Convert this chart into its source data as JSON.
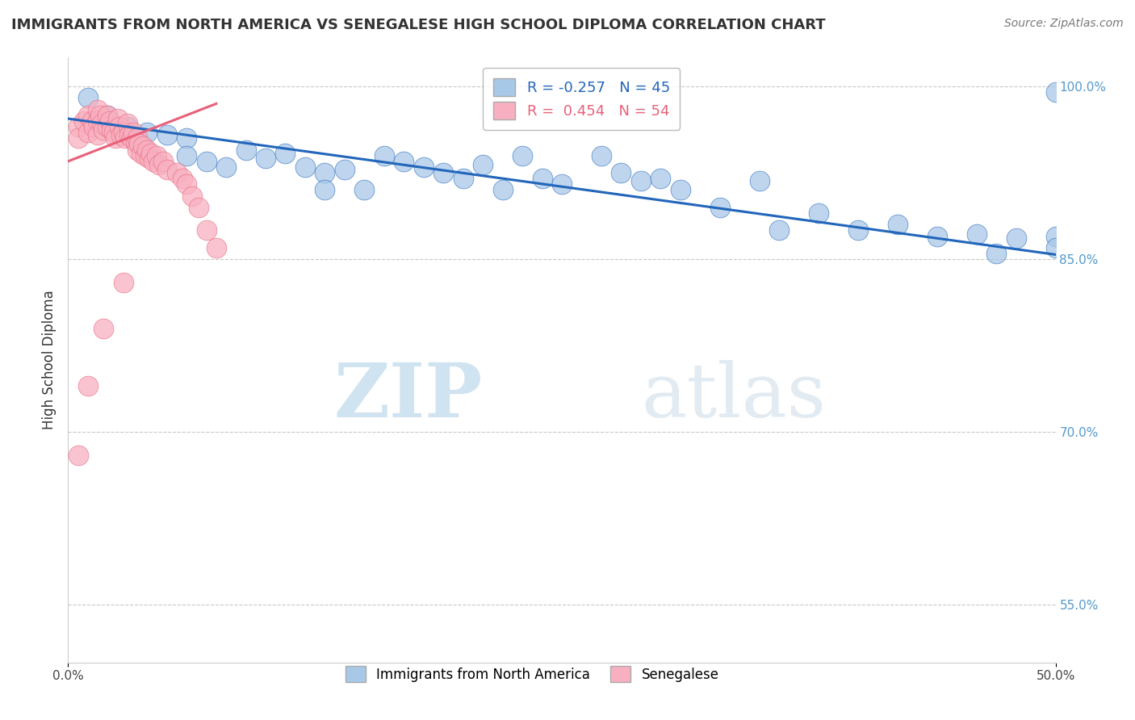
{
  "title": "IMMIGRANTS FROM NORTH AMERICA VS SENEGALESE HIGH SCHOOL DIPLOMA CORRELATION CHART",
  "source": "Source: ZipAtlas.com",
  "ylabel": "High School Diploma",
  "xlim": [
    0.0,
    0.5
  ],
  "ylim": [
    0.5,
    1.025
  ],
  "ytick_right_labels": [
    "100.0%",
    "85.0%",
    "70.0%",
    "55.0%"
  ],
  "ytick_right_vals": [
    1.0,
    0.85,
    0.7,
    0.55
  ],
  "grid_color": "#c8c8c8",
  "background_color": "#ffffff",
  "blue_color": "#a8c8e8",
  "blue_line_color": "#2266bb",
  "pink_color": "#f8b0c0",
  "pink_line_color": "#e8607a",
  "R_blue": -0.257,
  "N_blue": 45,
  "R_pink": 0.454,
  "N_pink": 54,
  "legend_label_blue": "Immigrants from North America",
  "legend_label_pink": "Senegalese",
  "watermark_zip": "ZIP",
  "watermark_atlas": "atlas",
  "blue_scatter_x": [
    0.01,
    0.02,
    0.03,
    0.04,
    0.05,
    0.06,
    0.06,
    0.07,
    0.08,
    0.09,
    0.1,
    0.11,
    0.12,
    0.13,
    0.13,
    0.14,
    0.15,
    0.16,
    0.17,
    0.18,
    0.19,
    0.2,
    0.21,
    0.22,
    0.23,
    0.24,
    0.25,
    0.27,
    0.28,
    0.29,
    0.3,
    0.31,
    0.33,
    0.35,
    0.36,
    0.38,
    0.4,
    0.42,
    0.44,
    0.46,
    0.48,
    0.5,
    0.5,
    0.5,
    0.47
  ],
  "blue_scatter_y": [
    0.99,
    0.975,
    0.965,
    0.96,
    0.958,
    0.955,
    0.94,
    0.935,
    0.93,
    0.945,
    0.938,
    0.942,
    0.93,
    0.925,
    0.91,
    0.928,
    0.91,
    0.94,
    0.935,
    0.93,
    0.925,
    0.92,
    0.932,
    0.91,
    0.94,
    0.92,
    0.915,
    0.94,
    0.925,
    0.918,
    0.92,
    0.91,
    0.895,
    0.918,
    0.875,
    0.89,
    0.875,
    0.88,
    0.87,
    0.872,
    0.868,
    0.995,
    0.87,
    0.86,
    0.855
  ],
  "pink_scatter_x": [
    0.005,
    0.005,
    0.008,
    0.01,
    0.01,
    0.012,
    0.013,
    0.015,
    0.015,
    0.015,
    0.016,
    0.017,
    0.018,
    0.02,
    0.02,
    0.021,
    0.022,
    0.023,
    0.024,
    0.025,
    0.026,
    0.027,
    0.028,
    0.029,
    0.03,
    0.031,
    0.032,
    0.033,
    0.034,
    0.035,
    0.035,
    0.036,
    0.037,
    0.038,
    0.039,
    0.04,
    0.041,
    0.042,
    0.043,
    0.045,
    0.046,
    0.048,
    0.05,
    0.055,
    0.058,
    0.06,
    0.063,
    0.066,
    0.07,
    0.075,
    0.028,
    0.018,
    0.01,
    0.005
  ],
  "pink_scatter_y": [
    0.965,
    0.955,
    0.97,
    0.975,
    0.96,
    0.97,
    0.965,
    0.98,
    0.97,
    0.958,
    0.975,
    0.968,
    0.962,
    0.975,
    0.965,
    0.97,
    0.962,
    0.96,
    0.955,
    0.972,
    0.965,
    0.958,
    0.96,
    0.955,
    0.968,
    0.958,
    0.955,
    0.96,
    0.952,
    0.955,
    0.945,
    0.95,
    0.942,
    0.948,
    0.94,
    0.945,
    0.938,
    0.942,
    0.935,
    0.94,
    0.932,
    0.935,
    0.928,
    0.925,
    0.92,
    0.915,
    0.905,
    0.895,
    0.875,
    0.86,
    0.83,
    0.79,
    0.74,
    0.68
  ],
  "blue_trend_x": [
    0.0,
    0.5
  ],
  "blue_trend_y": [
    0.972,
    0.854
  ],
  "pink_trend_x": [
    0.0,
    0.075
  ],
  "pink_trend_y": [
    0.935,
    0.985
  ]
}
